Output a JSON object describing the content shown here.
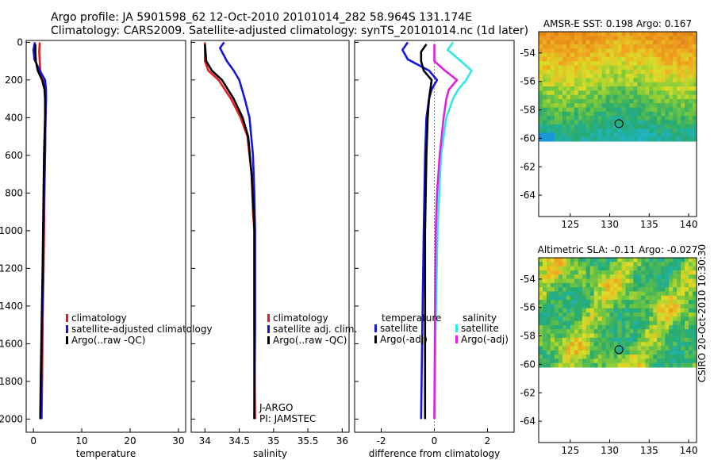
{
  "title_line1": "Argo profile: JA 5901598_62 12-Oct-2010 20101014_282 58.964S 131.174E",
  "title_line2": "Climatology: CARS2009. Satellite-adjusted climatology: synTS_20101014.nc (1d later)",
  "credit": "CSIRO 20-Oct-2010 10:30:30",
  "colors": {
    "red": "#e81c1c",
    "blue": "#1515e0",
    "black": "#000000",
    "cyan": "#30e8e8",
    "magenta": "#e020e0"
  },
  "chart_data": [
    {
      "type": "line",
      "id": "temperature",
      "xlabel": "temperature",
      "xlim": [
        -1.5,
        31.5
      ],
      "xticks": [
        0,
        10,
        20,
        30
      ],
      "xtick_labels": [
        "0",
        "10",
        "20",
        "30"
      ],
      "ylim": [
        2070,
        -10
      ],
      "yticks": [
        0,
        200,
        400,
        600,
        800,
        1000,
        1200,
        1400,
        1600,
        1800,
        2000
      ],
      "ytick_labels": [
        "0",
        "200",
        "400",
        "600",
        "800",
        "1000",
        "1200",
        "1400",
        "1600",
        "1800",
        "2000"
      ],
      "legend": [
        "climatology",
        "satellite-adjusted climatology",
        "Argo(..raw -QC)"
      ],
      "series": [
        {
          "name": "climatology",
          "color": "red",
          "x": [
            1.3,
            1.2,
            1.3,
            1.4,
            2.2,
            2.5,
            2.6,
            2.5,
            2.4,
            2.3,
            2.2,
            2.1,
            1.9,
            1.8,
            1.7
          ],
          "y": [
            0,
            50,
            100,
            150,
            200,
            250,
            300,
            400,
            600,
            800,
            1000,
            1200,
            1500,
            1800,
            2000
          ]
        },
        {
          "name": "satellite-adjusted climatology",
          "color": "blue",
          "x": [
            0.3,
            0.0,
            0.2,
            1.3,
            2.4,
            2.6,
            2.6,
            2.5,
            2.4,
            2.2,
            2.1,
            2.0,
            1.8,
            1.7,
            1.6
          ],
          "y": [
            0,
            40,
            90,
            150,
            200,
            250,
            300,
            400,
            600,
            800,
            1000,
            1200,
            1500,
            1800,
            2000
          ]
        },
        {
          "name": "Argo(..raw -QC)",
          "color": "black",
          "x": [
            0.4,
            0.4,
            0.5,
            0.9,
            1.8,
            2.3,
            2.4,
            2.4,
            2.2,
            2.1,
            2.0,
            1.9,
            1.7,
            1.5,
            1.4
          ],
          "y": [
            10,
            50,
            100,
            150,
            200,
            250,
            300,
            400,
            600,
            800,
            1000,
            1200,
            1500,
            1800,
            2000
          ]
        }
      ]
    },
    {
      "type": "line",
      "id": "salinity",
      "xlabel": "salinity",
      "xlim": [
        33.8,
        36.1
      ],
      "xticks": [
        34,
        34.5,
        35,
        35.5,
        36
      ],
      "xtick_labels": [
        "34",
        "34.5",
        "35",
        "35.5",
        "36"
      ],
      "ylim": [
        2070,
        -10
      ],
      "legend": [
        "climatology",
        "satellite adj. clim.",
        "Argo(..raw -QC)"
      ],
      "annotations": [
        "J-ARGO",
        "PI: JAMSTEC"
      ],
      "series": [
        {
          "name": "climatology",
          "color": "red",
          "x": [
            34.0,
            34.0,
            34.05,
            34.2,
            34.38,
            34.52,
            34.62,
            34.68,
            34.7,
            34.72,
            34.72,
            34.72,
            34.73
          ],
          "y": [
            0,
            100,
            150,
            200,
            300,
            400,
            500,
            700,
            900,
            1000,
            1200,
            1500,
            2000
          ]
        },
        {
          "name": "satellite adj. clim.",
          "color": "blue",
          "x": [
            34.28,
            34.22,
            34.32,
            34.42,
            34.5,
            34.58,
            34.65,
            34.7,
            34.72,
            34.73,
            34.73,
            34.73,
            34.72
          ],
          "y": [
            0,
            30,
            100,
            150,
            200,
            300,
            400,
            600,
            800,
            1000,
            1200,
            1500,
            2000
          ]
        },
        {
          "name": "Argo(..raw -QC)",
          "color": "black",
          "x": [
            34.0,
            34.02,
            34.1,
            34.25,
            34.42,
            34.55,
            34.63,
            34.68,
            34.71,
            34.72,
            34.72,
            34.72
          ],
          "y": [
            10,
            100,
            150,
            200,
            300,
            400,
            500,
            700,
            900,
            1000,
            1500,
            2000
          ]
        }
      ]
    },
    {
      "type": "line",
      "id": "difference",
      "xlabel": "difference from climatology",
      "xlim": [
        -3,
        3
      ],
      "xticks": [
        -2,
        0,
        2
      ],
      "xtick_labels": [
        "-2",
        "0",
        "2"
      ],
      "ylim": [
        2070,
        -10
      ],
      "legend_headers": [
        "temperature",
        "salinity"
      ],
      "legend": [
        "satellite",
        "Argo(-adj)",
        "satellite",
        "Argo(-adj)"
      ],
      "series": [
        {
          "name": "temperature satellite",
          "color": "blue",
          "x": [
            -1.0,
            -1.2,
            -1.0,
            -0.2,
            0.1,
            -0.1,
            -0.2,
            -0.3,
            -0.35,
            -0.4,
            -0.45,
            -0.5
          ],
          "y": [
            0,
            40,
            90,
            150,
            200,
            250,
            300,
            400,
            600,
            1000,
            1500,
            2000
          ]
        },
        {
          "name": "temperature Argo(-adj)",
          "color": "black",
          "x": [
            -0.3,
            -0.5,
            -0.5,
            -0.4,
            -0.1,
            -0.15,
            -0.2,
            -0.25,
            -0.3,
            -0.35,
            -0.35,
            -0.35
          ],
          "y": [
            10,
            50,
            100,
            150,
            200,
            250,
            300,
            400,
            600,
            1000,
            1500,
            2000
          ]
        },
        {
          "name": "salinity satellite",
          "color": "cyan",
          "x": [
            0.7,
            0.5,
            1.0,
            1.4,
            1.2,
            0.9,
            0.7,
            0.45,
            0.25,
            0.12,
            0.05,
            0.0
          ],
          "y": [
            0,
            40,
            100,
            150,
            200,
            250,
            300,
            400,
            600,
            1000,
            1500,
            2000
          ]
        },
        {
          "name": "salinity Argo(-adj)",
          "color": "magenta",
          "x": [
            0.0,
            0.0,
            0.4,
            0.85,
            0.55,
            0.45,
            0.35,
            0.2,
            0.1,
            0.05,
            0.02,
            0.0
          ],
          "y": [
            10,
            100,
            150,
            200,
            250,
            300,
            400,
            600,
            800,
            1000,
            1500,
            2000
          ]
        }
      ]
    },
    {
      "type": "heatmap",
      "id": "amsre",
      "title": "AMSR-E SST: 0.198 Argo: 0.167",
      "xlim": [
        121,
        141
      ],
      "xticks": [
        125,
        130,
        135,
        140
      ],
      "xtick_labels": [
        "125",
        "130",
        "135",
        "140"
      ],
      "ylim": [
        -65.5,
        -52.5
      ],
      "yticks": [
        -54,
        -56,
        -58,
        -60,
        -62,
        -64
      ],
      "ytick_labels": [
        "-54",
        "-56",
        "-58",
        "-60",
        "-62",
        "-64"
      ],
      "data_ylim": [
        -60.2,
        -52.5
      ],
      "marker": [
        131.174,
        -58.964
      ]
    },
    {
      "type": "heatmap",
      "id": "sla",
      "title": "Altimetric SLA: -0.11 Argo: -0.027",
      "xlim": [
        121,
        141
      ],
      "xticks": [
        125,
        130,
        135,
        140
      ],
      "xtick_labels": [
        "125",
        "130",
        "135",
        "140"
      ],
      "ylim": [
        -65.5,
        -52.5
      ],
      "yticks": [
        -54,
        -56,
        -58,
        -60,
        -62,
        -64
      ],
      "ytick_labels": [
        "-54",
        "-56",
        "-58",
        "-60",
        "-62",
        "-64"
      ],
      "data_ylim": [
        -60.2,
        -52.5
      ],
      "marker": [
        131.174,
        -58.964
      ]
    }
  ]
}
